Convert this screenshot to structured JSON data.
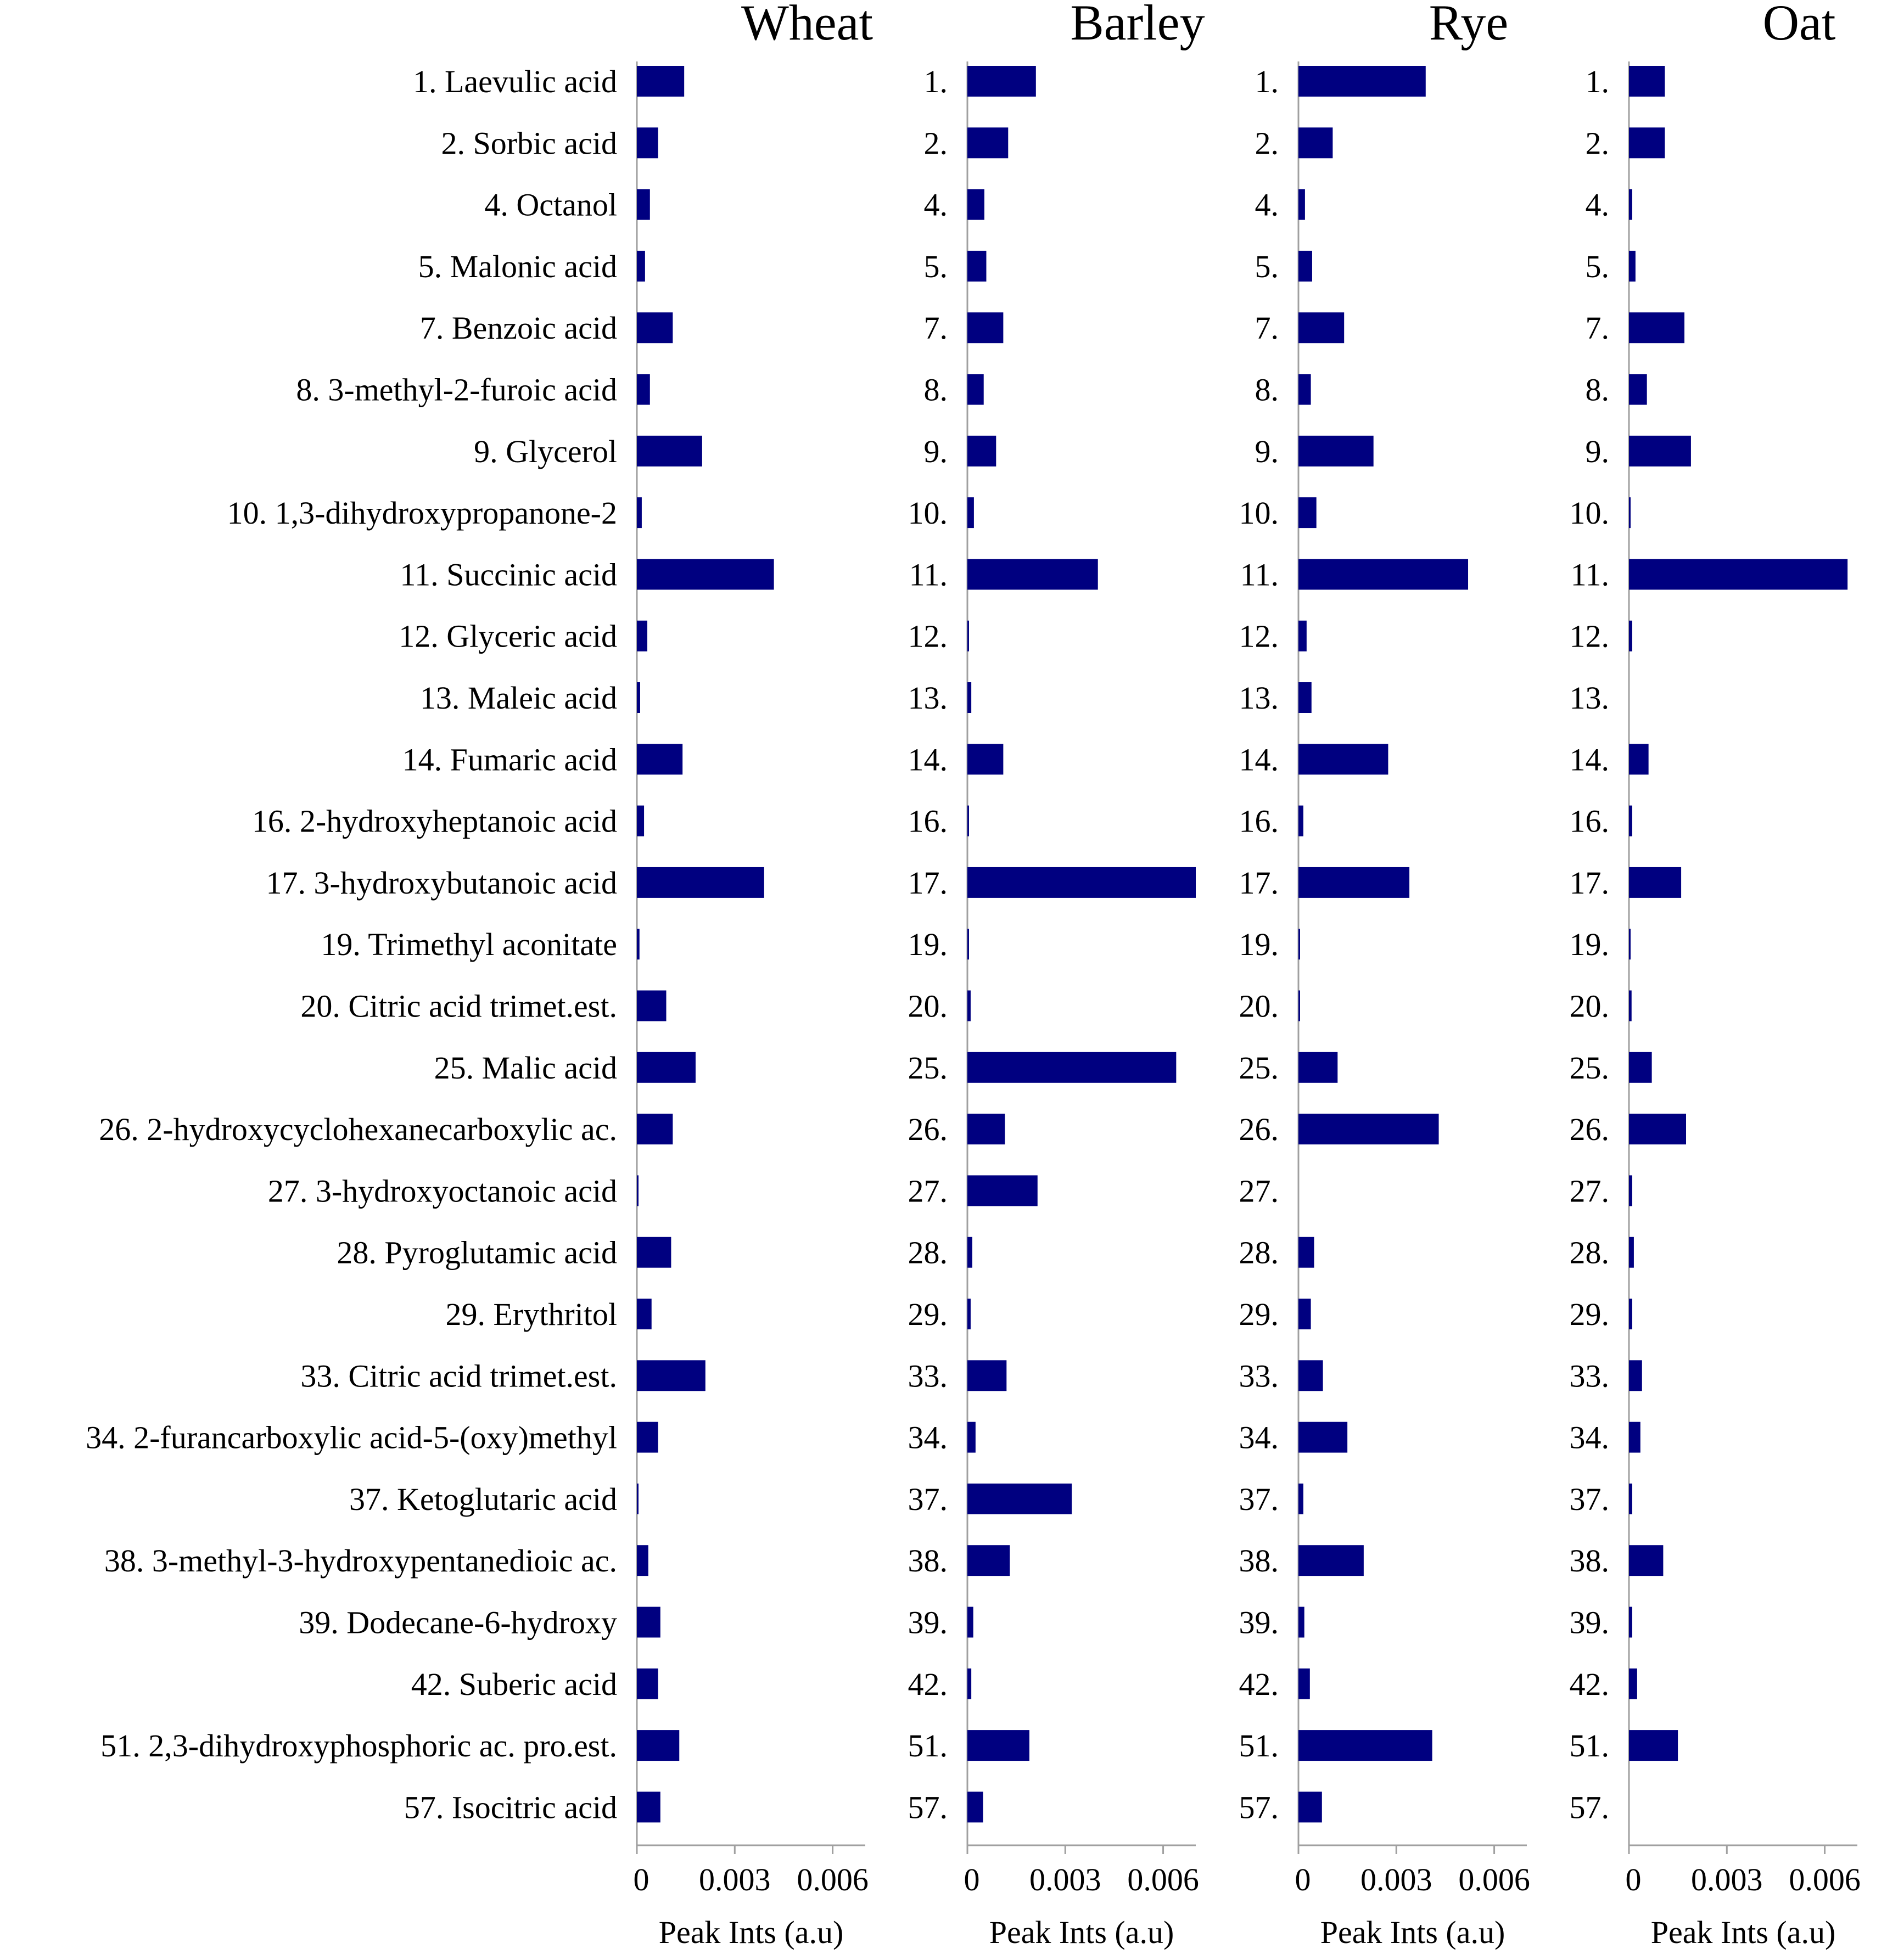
{
  "chart_data": {
    "type": "bar",
    "orientation": "horizontal",
    "xlabel": "Peak Ints (a.u)",
    "xlim": [
      0,
      0.007
    ],
    "xticks": [
      0,
      0.003,
      0.006
    ],
    "xtick_labels": [
      "0",
      "0.003",
      "0.006"
    ],
    "bar_color": "#000080",
    "categories": [
      "1. Laevulic acid",
      "2. Sorbic acid",
      "4. Octanol",
      "5. Malonic acid",
      "7. Benzoic acid",
      "8. 3-methyl-2-furoic acid",
      "9. Glycerol",
      "10. 1,3-dihydroxypropanone-2",
      "11. Succinic acid",
      "12. Glyceric acid",
      "13. Maleic acid",
      "14. Fumaric acid",
      "16. 2-hydroxyheptanoic acid",
      "17. 3-hydroxybutanoic acid",
      "19. Trimethyl aconitate",
      "20. Citric acid trimet.est.",
      "25. Malic acid",
      "26. 2-hydroxycyclohexanecarboxylic ac.",
      "27. 3-hydroxyoctanoic acid",
      "28. Pyroglutamic acid",
      "29. Erythritol",
      "33. Citric acid trimet.est.",
      "34. 2-furancarboxylic acid-5-(oxy)methyl",
      "37. Ketoglutaric acid",
      "38. 3-methyl-3-hydroxypentanedioic ac.",
      "39. Dodecane-6-hydroxy",
      "42. Suberic acid",
      "51. 2,3-dihydroxyphosphoric ac. pro.est.",
      "57. Isocitric acid"
    ],
    "short_labels": [
      "1.",
      "2.",
      "4.",
      "5.",
      "7.",
      "8.",
      "9.",
      "10.",
      "11.",
      "12.",
      "13.",
      "14.",
      "16.",
      "17.",
      "19.",
      "20.",
      "25.",
      "26.",
      "27.",
      "28.",
      "29.",
      "33.",
      "34.",
      "37.",
      "38.",
      "39.",
      "42.",
      "51.",
      "57."
    ],
    "series": [
      {
        "name": "Wheat",
        "values": [
          0.00145,
          0.00065,
          0.0004,
          0.00025,
          0.0011,
          0.0004,
          0.002,
          0.00015,
          0.0042,
          0.00032,
          0.0001,
          0.0014,
          0.00022,
          0.0039,
          8e-05,
          0.0009,
          0.0018,
          0.0011,
          5e-05,
          0.00105,
          0.00045,
          0.0021,
          0.00065,
          5e-05,
          0.00035,
          0.00072,
          0.00065,
          0.0013,
          0.00072
        ]
      },
      {
        "name": "Barley",
        "values": [
          0.0021,
          0.00125,
          0.00052,
          0.00058,
          0.0011,
          0.0005,
          0.00088,
          0.0002,
          0.004,
          5e-05,
          0.00012,
          0.0011,
          5e-05,
          0.007,
          5e-05,
          0.0001,
          0.0064,
          0.00115,
          0.00215,
          0.00015,
          0.0001,
          0.0012,
          0.00025,
          0.0032,
          0.0013,
          0.00018,
          0.00012,
          0.0019,
          0.00048
        ]
      },
      {
        "name": "Rye",
        "values": [
          0.0039,
          0.00105,
          0.0002,
          0.00042,
          0.0014,
          0.00038,
          0.0023,
          0.00055,
          0.0052,
          0.00025,
          0.0004,
          0.00275,
          0.00015,
          0.0034,
          5e-05,
          5e-05,
          0.0012,
          0.0043,
          0,
          0.00048,
          0.00038,
          0.00075,
          0.0015,
          0.00015,
          0.002,
          0.00018,
          0.00035,
          0.0041,
          0.00072
        ]
      },
      {
        "name": "Oat",
        "values": [
          0.0011,
          0.0011,
          0.0001,
          0.0002,
          0.0017,
          0.00055,
          0.0019,
          5e-05,
          0.0067,
          0.0001,
          0,
          0.0006,
          0.0001,
          0.0016,
          5e-05,
          8e-05,
          0.0007,
          0.00175,
          0.0001,
          0.00015,
          0.0001,
          0.0004,
          0.00035,
          0.0001,
          0.00105,
          0.0001,
          0.00025,
          0.0015,
          0
        ]
      }
    ]
  }
}
